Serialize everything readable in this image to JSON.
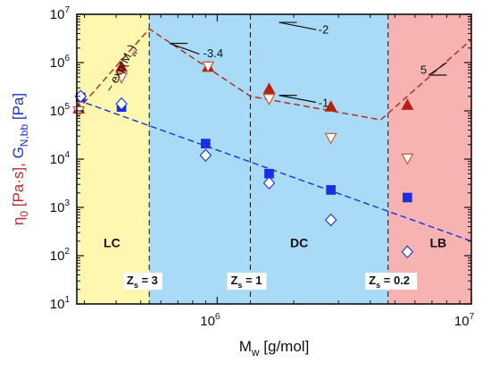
{
  "chart_data": {
    "type": "scatter",
    "x_scale": "log",
    "y_scale": "log",
    "xlim": [
      280000,
      10000000
    ],
    "ylim": [
      10,
      10000000
    ],
    "xlabel": "M",
    "xlabel_sub": "w",
    "xlabel_unit": " [g/mol]",
    "ylabel_parts": [
      {
        "text": "η",
        "color": "#c0282a"
      },
      {
        "text": "0",
        "color": "#c0282a",
        "sub": true
      },
      {
        "text": " [Pa·s], ",
        "color": "#c0282a"
      },
      {
        "text": "G",
        "color": "#2030c8"
      },
      {
        "text": "N,bb",
        "color": "#2030c8",
        "sub": true
      },
      {
        "text": " [Pa]",
        "color": "#2030c8"
      }
    ],
    "x_ticks": [
      {
        "value": 1000000,
        "base": "10",
        "exp": "6"
      },
      {
        "value": 10000000,
        "base": "10",
        "exp": "7"
      }
    ],
    "y_ticks": [
      {
        "value": 10,
        "base": "10",
        "exp": "1"
      },
      {
        "value": 100,
        "base": "10",
        "exp": "2"
      },
      {
        "value": 1000,
        "base": "10",
        "exp": "3"
      },
      {
        "value": 10000,
        "base": "10",
        "exp": "4"
      },
      {
        "value": 100000,
        "base": "10",
        "exp": "5"
      },
      {
        "value": 1000000,
        "base": "10",
        "exp": "6"
      },
      {
        "value": 10000000,
        "base": "10",
        "exp": "7"
      }
    ],
    "regions": [
      {
        "name": "LC",
        "x0": 280000,
        "x1": 540000,
        "color": "#fdf7b0"
      },
      {
        "name": "DC",
        "x0": 540000,
        "x1": 4700000,
        "color": "#a9dbf8"
      },
      {
        "name": "LB",
        "x0": 4700000,
        "x1": 10000000,
        "color": "#f7b2b2"
      }
    ],
    "region_labels": [
      {
        "text": "LC",
        "x": 385000,
        "y": 150
      },
      {
        "text": "DC",
        "x": 2100000,
        "y": 150
      },
      {
        "text": "LB",
        "x": 7400000,
        "y": 150
      }
    ],
    "boundaries": [
      {
        "x": 540000,
        "label": "Z",
        "label_sub": "s",
        "label_rest": " = 3",
        "label_x": 440000
      },
      {
        "x": 1350000,
        "label": "Z",
        "label_sub": "s",
        "label_rest": " = 1",
        "label_x": 1130000
      },
      {
        "x": 4700000,
        "label": "Z",
        "label_sub": "s",
        "label_rest": " = 0.2",
        "label_x": 3950000
      }
    ],
    "series": [
      {
        "marker": "triangle-up",
        "color": "#b52010",
        "fill": "#b52010",
        "points": [
          [
            285000,
            110000
          ],
          [
            420000,
            800000
          ],
          [
            920000,
            800000
          ],
          [
            1600000,
            280000
          ],
          [
            2800000,
            120000
          ],
          [
            5600000,
            130000
          ]
        ]
      },
      {
        "marker": "triangle-down",
        "color": "#c05020",
        "fill": "#ffffff",
        "points": [
          [
            285000,
            100000
          ],
          [
            420000,
            500000
          ],
          [
            920000,
            850000
          ],
          [
            1600000,
            180000
          ],
          [
            2800000,
            28000
          ],
          [
            5600000,
            10500
          ]
        ]
      },
      {
        "marker": "square",
        "color": "#1a30e0",
        "fill": "#1a30e0",
        "points": [
          [
            290000,
            190000
          ],
          [
            420000,
            120000
          ],
          [
            900000,
            21000
          ],
          [
            1600000,
            5000
          ],
          [
            2800000,
            2300
          ],
          [
            5600000,
            1600
          ]
        ]
      },
      {
        "marker": "diamond",
        "color": "#1a30e0",
        "fill": "#ffffff",
        "points": [
          [
            290000,
            200000
          ],
          [
            420000,
            140000
          ],
          [
            900000,
            12000
          ],
          [
            1600000,
            3200
          ],
          [
            2800000,
            550
          ],
          [
            5600000,
            120
          ]
        ]
      }
    ],
    "fits": [
      {
        "color": "#b02a10",
        "points": [
          [
            280000,
            100000
          ],
          [
            540000,
            5000000
          ],
          [
            1350000,
            200000
          ],
          [
            4400000,
            65000
          ],
          [
            10000000,
            3000000
          ]
        ]
      },
      {
        "color": "#1a30e0",
        "points": [
          [
            280000,
            170000
          ],
          [
            10000000,
            200
          ]
        ]
      }
    ],
    "annotations": [
      {
        "kind": "slope",
        "text": "-3.4",
        "lx1": 650000,
        "ly1": 2500000,
        "lx2": 850000,
        "ly2": 1500000,
        "tx": 880000,
        "ty": 1600000
      },
      {
        "kind": "slope",
        "text": "-1",
        "lx1": 1750000,
        "ly1": 210000,
        "lx2": 2450000,
        "ly2": 150000,
        "tx": 2500000,
        "ty": 150000
      },
      {
        "kind": "slope",
        "text": "-2",
        "lx1": 1750000,
        "ly1": 6800000,
        "lx2": 2450000,
        "ly2": 4800000,
        "tx": 2500000,
        "ty": 5000000
      },
      {
        "kind": "slope-up",
        "text": "5",
        "lx1": 6800000,
        "ly1": 550000,
        "lx2": 8000000,
        "ly2": 1000000,
        "tx": 6300000,
        "ty": 720000
      },
      {
        "kind": "rotated",
        "text": "~ exp(M",
        "sub": "w",
        "tail": ")",
        "x": 430000,
        "y": 700000,
        "angle": -62
      }
    ]
  }
}
